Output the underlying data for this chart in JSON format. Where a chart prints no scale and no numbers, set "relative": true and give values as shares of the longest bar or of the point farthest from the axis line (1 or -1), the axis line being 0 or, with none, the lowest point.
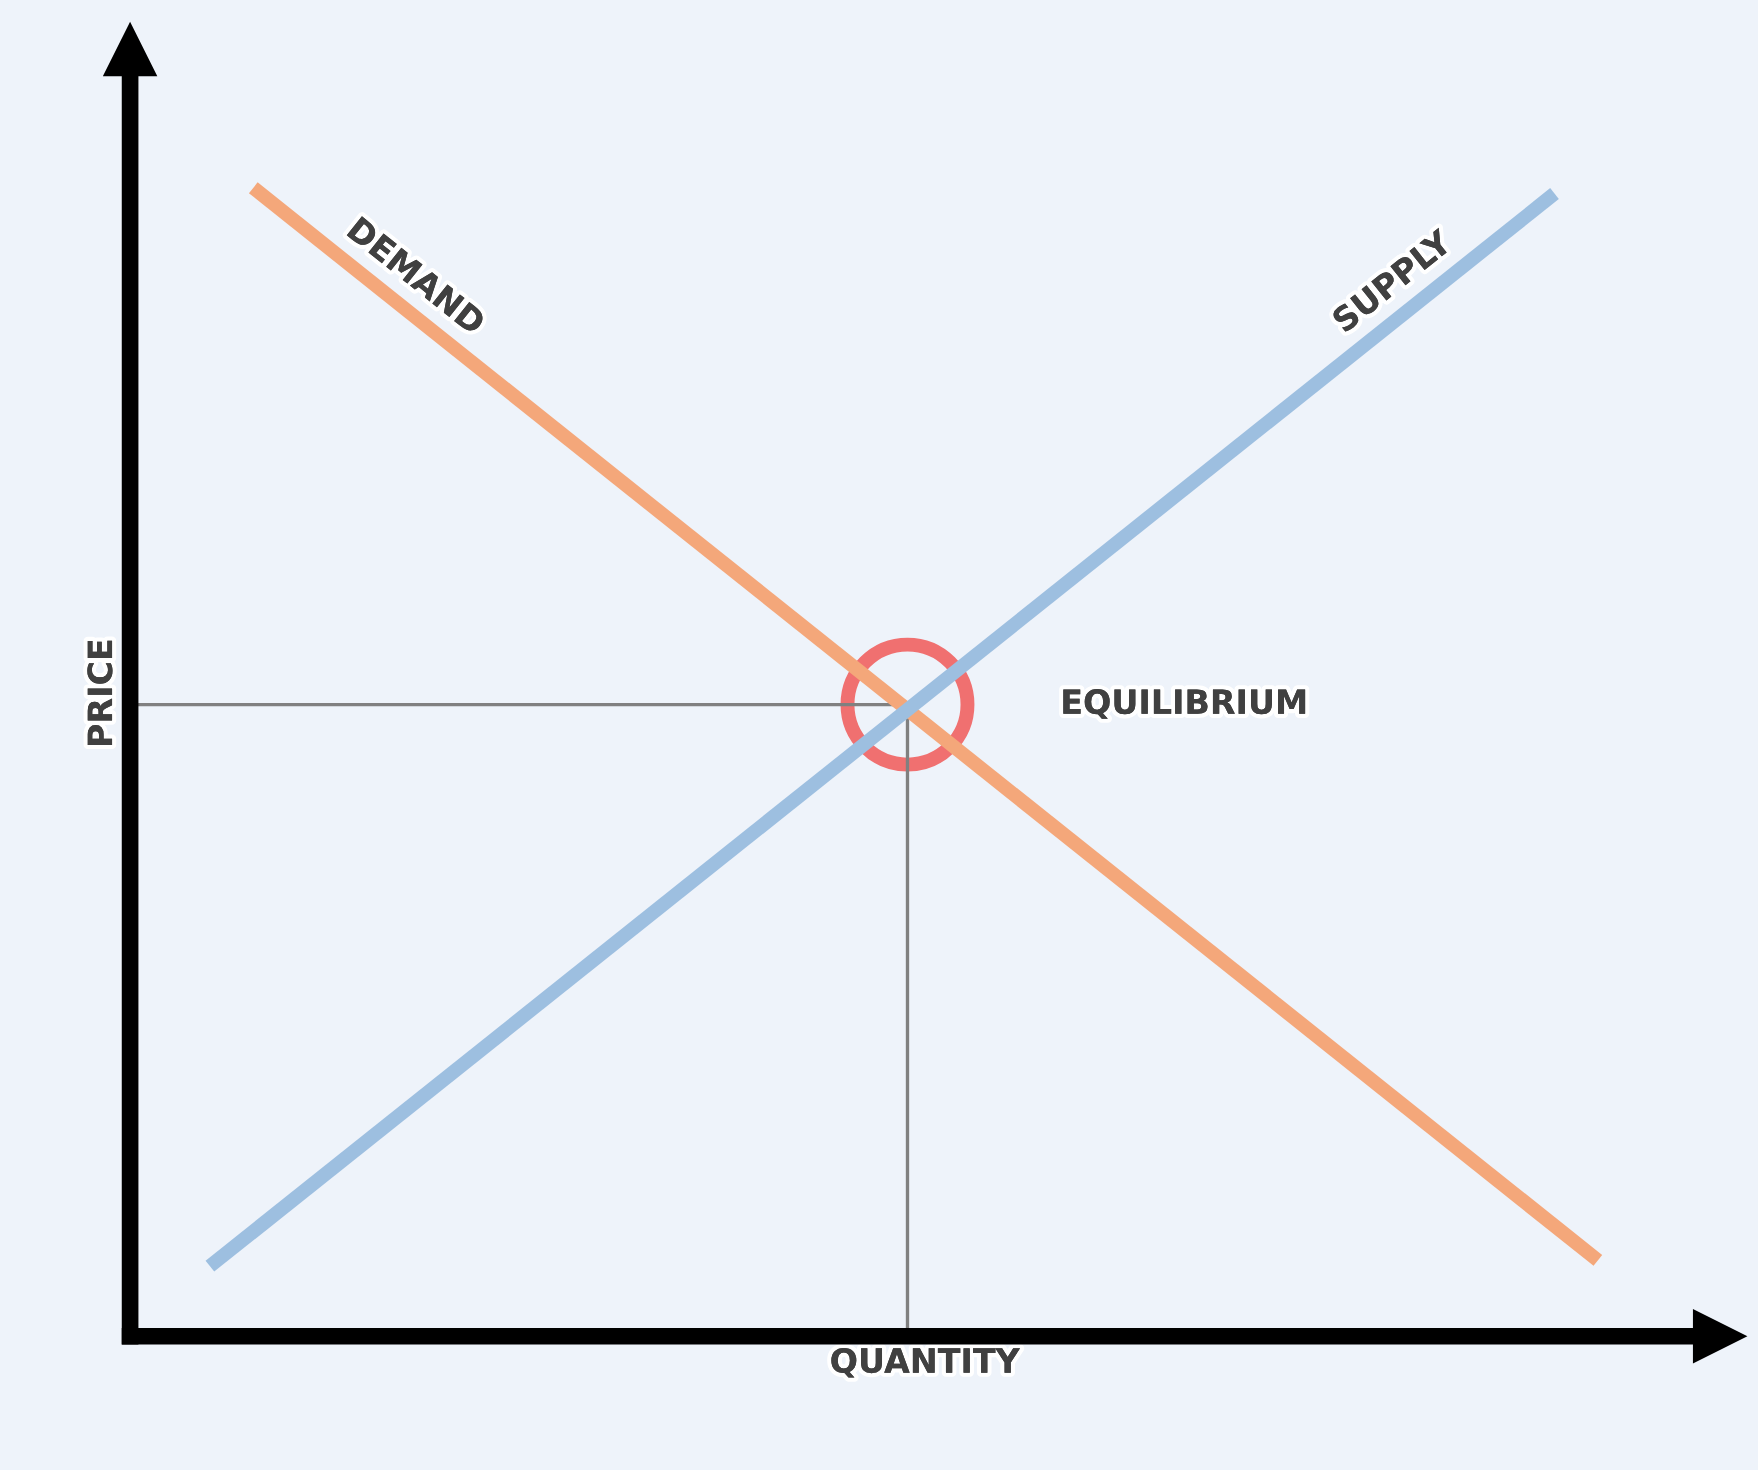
{
  "chart_data": {
    "type": "line",
    "relative": true,
    "xlabel": "QUANTITY",
    "ylabel": "PRICE",
    "categories": [
      null,
      null,
      null,
      null,
      null,
      null,
      null,
      null,
      null,
      null,
      null,
      null,
      null,
      null,
      null,
      null,
      null,
      null,
      null,
      null,
      null,
      null,
      null,
      null,
      null,
      null,
      null,
      null,
      null,
      null,
      null,
      null,
      null
    ],
    "series": [
      {
        "name": "DEMAND",
        "color": "#f4a77a",
        "values": [
          null,
          1,
          null,
          null,
          null,
          null,
          null,
          null,
          null,
          null,
          null,
          null,
          null,
          null,
          null,
          null,
          null,
          null,
          null,
          null,
          null,
          null,
          null,
          null,
          null,
          null,
          null,
          null,
          null,
          null,
          null,
          null,
          0.066
        ]
      },
      {
        "name": "SUPPLY",
        "color": "#9dbfe0",
        "values": [
          0.061,
          null,
          null,
          null,
          null,
          null,
          null,
          null,
          null,
          null,
          null,
          null,
          null,
          null,
          null,
          null,
          null,
          null,
          null,
          null,
          null,
          null,
          null,
          null,
          null,
          null,
          null,
          null,
          null,
          null,
          null,
          0.995,
          null
        ]
      }
    ],
    "ref_lines": [
      {
        "axis": "y",
        "value": 0.55,
        "color": "#808080"
      }
    ],
    "annotations": [
      "EQUILIBRIUM"
    ],
    "grid": false,
    "legend": false,
    "tick_labels": false
  }
}
